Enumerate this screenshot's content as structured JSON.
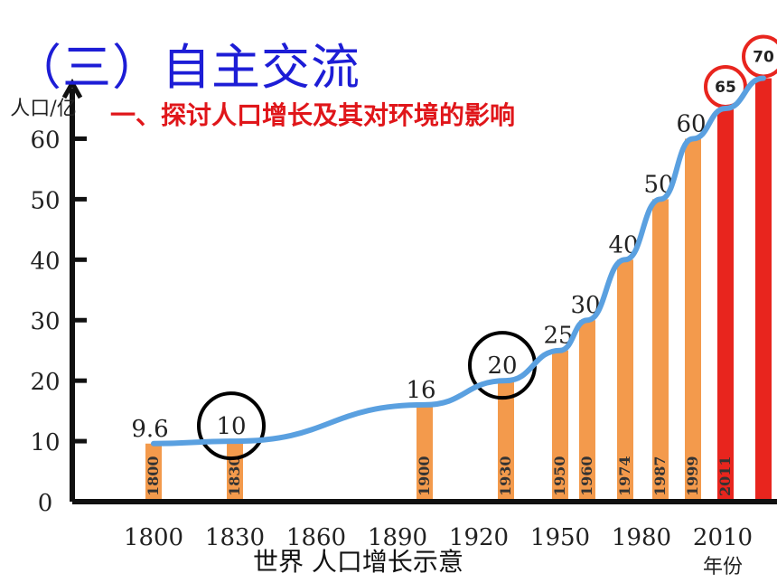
{
  "slide": {
    "title": "（三）自主交流",
    "subtitle": "一、探讨人口增长及其对环境的影响",
    "caption": "世界  人口增长示意"
  },
  "colors": {
    "title": "#1d1dd6",
    "subtitle": "#e0161a",
    "bar_history": "#f39a4c",
    "bar_recent": "#e8251e",
    "trend_line": "#5aa0e0",
    "axis": "#111111",
    "highlight_black": "#000000",
    "highlight_red": "#e8251e"
  },
  "chart_data": {
    "type": "bar",
    "title": "世界  人口增长示意",
    "ylabel": "人口/亿",
    "xlabel": "年份",
    "ylim": [
      0,
      65
    ],
    "xlim": [
      1770,
      2030
    ],
    "yticks": [
      0,
      10,
      20,
      30,
      40,
      50,
      60
    ],
    "xticks": [
      1800,
      1830,
      1860,
      1890,
      1920,
      1950,
      1980,
      2010
    ],
    "bars": [
      {
        "year": 1800,
        "value": 9.6,
        "label": "9.6",
        "year_label": "1800"
      },
      {
        "year": 1830,
        "value": 10,
        "label": "10",
        "year_label": "1830"
      },
      {
        "year": 1900,
        "value": 16,
        "label": "16",
        "year_label": "1900"
      },
      {
        "year": 1930,
        "value": 20,
        "label": "20",
        "year_label": "1930"
      },
      {
        "year": 1950,
        "value": 25,
        "label": "25",
        "year_label": "1950"
      },
      {
        "year": 1960,
        "value": 30,
        "label": "30",
        "year_label": "1960"
      },
      {
        "year": 1974,
        "value": 40,
        "label": "40",
        "year_label": "1974"
      },
      {
        "year": 1987,
        "value": 50,
        "label": "50",
        "year_label": "1987"
      },
      {
        "year": 1999,
        "value": 60,
        "label": "60",
        "year_label": "1999"
      },
      {
        "year": 2011,
        "value": 65,
        "label": "65",
        "year_label": "2011",
        "highlight": true
      },
      {
        "year": 2025,
        "value": 70,
        "label": "70",
        "year_label": "",
        "highlight": true
      }
    ],
    "circled_labels": [
      "10",
      "20",
      "65",
      "70"
    ],
    "grid": false,
    "legend": "none"
  }
}
